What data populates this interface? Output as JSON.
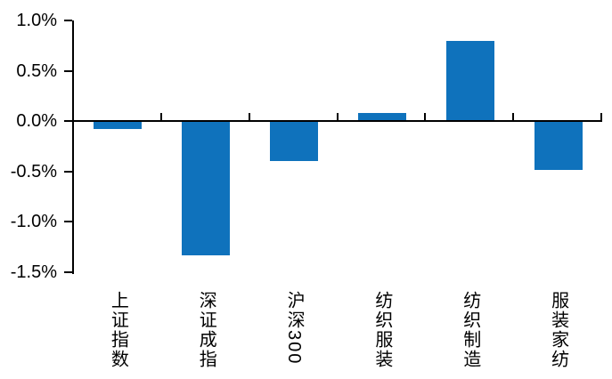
{
  "chart_data": {
    "type": "bar",
    "categories": [
      "上证指数",
      "深证成指",
      "沪深300",
      "纺织服装",
      "纺织制造",
      "服装家纺"
    ],
    "values": [
      -0.08,
      -1.33,
      -0.4,
      0.08,
      0.8,
      -0.48
    ],
    "unit": "%",
    "title": "",
    "xlabel": "",
    "ylabel": "",
    "ylim": [
      -1.5,
      1.0
    ],
    "ytick_step": 0.5,
    "ytick_labels": [
      "1.0%",
      "0.5%",
      "0.0%",
      "-0.5%",
      "-1.0%",
      "-1.5%"
    ],
    "grid": false,
    "legend_position": "none",
    "bar_color": "#0f72bc",
    "axis_color": "#000000",
    "background_color": "#ffffff"
  }
}
